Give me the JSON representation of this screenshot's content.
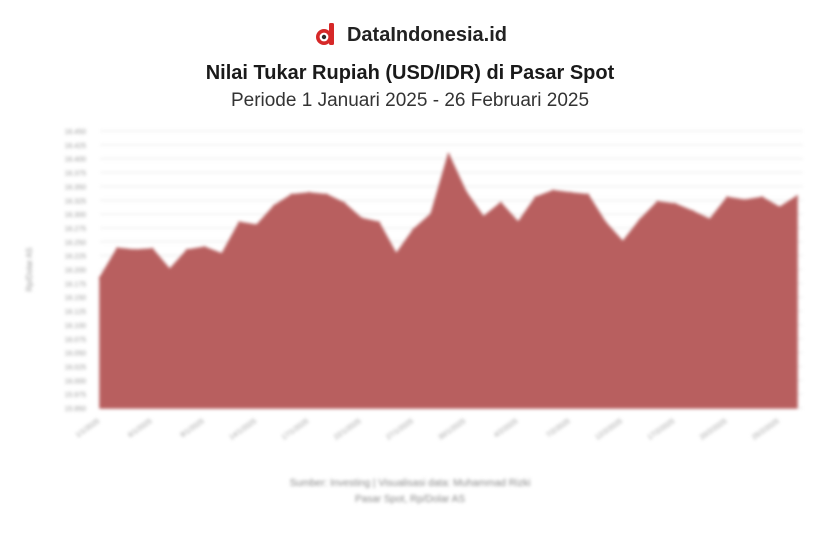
{
  "brand": {
    "name": "DataIndonesia.id",
    "logo_color": "#d62828"
  },
  "header": {
    "title": "Nilai Tukar Rupiah (USD/IDR) di Pasar Spot",
    "subtitle": "Periode 1 Januari 2025 - 26 Februari 2025"
  },
  "chart_data": {
    "type": "area",
    "ylabel": "Rp/Dolar AS",
    "ylim": [
      15950,
      16450
    ],
    "yticks": [
      15950,
      15975,
      16000,
      16025,
      16050,
      16075,
      16100,
      16125,
      16150,
      16175,
      16200,
      16225,
      16250,
      16275,
      16300,
      16325,
      16350,
      16375,
      16400,
      16425,
      16450
    ],
    "x": [
      "1/1/2025",
      "2/1/2025",
      "3/1/2025",
      "6/1/2025",
      "7/1/2025",
      "8/1/2025",
      "9/1/2025",
      "10/1/2025",
      "13/1/2025",
      "14/1/2025",
      "15/1/2025",
      "16/1/2025",
      "17/1/2025",
      "20/1/2025",
      "21/1/2025",
      "22/1/2025",
      "23/1/2025",
      "24/1/2025",
      "27/1/2025",
      "28/1/2025",
      "29/1/2025",
      "30/1/2025",
      "31/1/2025",
      "3/2/2025",
      "4/2/2025",
      "5/2/2025",
      "6/2/2025",
      "7/2/2025",
      "10/2/2025",
      "11/2/2025",
      "12/2/2025",
      "13/2/2025",
      "14/2/2025",
      "17/2/2025",
      "18/2/2025",
      "19/2/2025",
      "20/2/2025",
      "21/2/2025",
      "24/2/2025",
      "25/2/2025",
      "26/2/2025"
    ],
    "values": [
      16185,
      16238,
      16235,
      16237,
      16200,
      16235,
      16240,
      16228,
      16285,
      16280,
      16315,
      16335,
      16338,
      16335,
      16320,
      16292,
      16285,
      16228,
      16272,
      16300,
      16408,
      16340,
      16295,
      16320,
      16285,
      16330,
      16342,
      16338,
      16335,
      16285,
      16250,
      16290,
      16322,
      16318,
      16305,
      16290,
      16330,
      16325,
      16330,
      16312,
      16332
    ],
    "x_tick_labels": [
      "1/1/2025",
      "6/1/2025",
      "9/1/2025",
      "14/1/2025",
      "17/1/2025",
      "22/1/2025",
      "27/1/2025",
      "30/1/2025",
      "4/2/2025",
      "7/2/2025",
      "12/2/2025",
      "17/2/2025",
      "20/2/2025",
      "25/2/2025"
    ],
    "colors": {
      "area": "#b85f5f",
      "grid": "#e9e9e9",
      "tick_text": "#9a9a9a"
    },
    "grid": true,
    "legend": "none"
  },
  "footer": {
    "source": "Sumber: Investing | Visualisasi data: Muhammad Rizki",
    "note": "Pasar Spot, Rp/Dolar AS"
  }
}
